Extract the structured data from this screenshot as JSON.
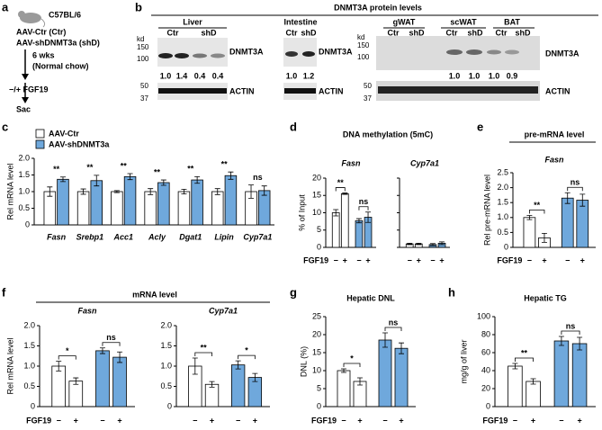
{
  "schematic": {
    "label": "a",
    "strain": "C57BL/6",
    "groups": [
      "AAV-Ctr (Ctr)",
      "AAV-shDNMT3a (shD)"
    ],
    "duration": "6 wks",
    "diet": "(Normal chow)",
    "treatment": "−/+ FGF19",
    "endpoint": "Sac"
  },
  "blots": {
    "label": "b",
    "title": "DNMT3A protein levels",
    "unit": "kd",
    "markers_top": [
      "150",
      "100"
    ],
    "markers_bottom": [
      "50",
      "37"
    ],
    "proteins": [
      "DNMT3A",
      "ACTIN"
    ],
    "panels": [
      {
        "tissue": "Liver",
        "lanes": [
          "Ctr",
          "shD"
        ],
        "quantification": [
          "1.0",
          "1.4",
          "0.4",
          "0.4"
        ]
      },
      {
        "tissue": "Intestine",
        "lanes": [
          "Ctr",
          "shD"
        ],
        "quantification": [
          "1.0",
          "1.2"
        ]
      },
      {
        "tissue": "gWAT",
        "lanes": [
          "Ctr",
          "shD"
        ]
      },
      {
        "tissue": "scWAT",
        "lanes": [
          "Ctr",
          "shD"
        ],
        "quantification": [
          "1.0",
          "1.0"
        ]
      },
      {
        "tissue": "BAT",
        "lanes": [
          "Ctr",
          "shD"
        ],
        "quantification": [
          "1.0",
          "0.9"
        ]
      }
    ]
  },
  "chart_data": [
    {
      "type": "grouped_bar",
      "label": "c",
      "ylabel": "Rel mRNA level",
      "categories": [
        "Fasn",
        "Srebp1",
        "Acc1",
        "Acly",
        "Dgat1",
        "Lipin",
        "Cyp7a1"
      ],
      "series": [
        {
          "name": "AAV-Ctr",
          "color": "#ffffff",
          "values": [
            1,
            1,
            1,
            1,
            1,
            1,
            1
          ],
          "errors": [
            0.14,
            0.08,
            0.03,
            0.09,
            0.07,
            0.09,
            0.2
          ]
        },
        {
          "name": "AAV-shDNMT3a",
          "color": "#6fa8dc",
          "values": [
            1.37,
            1.33,
            1.45,
            1.27,
            1.35,
            1.48,
            1.03
          ],
          "errors": [
            0.07,
            0.16,
            0.09,
            0.08,
            0.1,
            0.11,
            0.14
          ]
        }
      ],
      "significance": [
        "**",
        "**",
        "**",
        "**",
        "**",
        "**",
        "ns"
      ],
      "ylim": [
        0,
        2
      ],
      "yticks": [
        0,
        0.5,
        {
          "value": 1,
          "label": "1.0"
        },
        1.5,
        {
          "value": 2,
          "label": "2.0"
        }
      ]
    },
    {
      "type": "bar",
      "label": "d",
      "title": "DNA methylation (5mC)",
      "ylabel": "% of Input",
      "xlabel": "FGF19",
      "categories": [
        "−",
        "+",
        "−",
        "+"
      ],
      "colors": [
        "#ffffff",
        "#ffffff",
        "#6fa8dc",
        "#6fa8dc"
      ],
      "ylim": [
        0,
        20
      ],
      "yticks": [
        0,
        5,
        10,
        15,
        20
      ],
      "subplots": [
        {
          "title": "Fasn",
          "values": [
            10,
            15.5,
            7.7,
            8.7
          ],
          "errors": [
            0.9,
            0.2,
            0.6,
            1.5
          ],
          "significance": [
            "**",
            "ns"
          ]
        },
        {
          "title": "Cyp7a1",
          "values": [
            1,
            1,
            0.8,
            1.2
          ],
          "errors": [
            0.2,
            0.2,
            0.3,
            0.4
          ],
          "significance": []
        }
      ]
    },
    {
      "type": "bar",
      "label": "e",
      "title": "pre-mRNA level",
      "ylabel": "Rel pre-mRNA level",
      "xlabel": "FGF19",
      "categories": [
        "−",
        "+",
        "−",
        "+"
      ],
      "colors": [
        "#ffffff",
        "#ffffff",
        "#6fa8dc",
        "#6fa8dc"
      ],
      "ylim": [
        0,
        2.5
      ],
      "yticks": [
        0,
        0.5,
        {
          "value": 1,
          "label": "1.0"
        },
        1.5,
        {
          "value": 2,
          "label": "2.0"
        },
        2.5
      ],
      "subplots": [
        {
          "title": "Fasn",
          "values": [
            1,
            0.32,
            1.65,
            1.58
          ],
          "errors": [
            0.07,
            0.15,
            0.18,
            0.2
          ],
          "significance": [
            "**",
            "ns"
          ]
        }
      ]
    },
    {
      "type": "bar",
      "label": "f",
      "title": "mRNA level",
      "ylabel": "Rel mRNA level",
      "xlabel": "FGF19",
      "categories": [
        "−",
        "+",
        "−",
        "+"
      ],
      "colors": [
        "#ffffff",
        "#ffffff",
        "#6fa8dc",
        "#6fa8dc"
      ],
      "ylim": [
        0,
        2
      ],
      "yticks": [
        0,
        0.5,
        {
          "value": 1,
          "label": "1.0"
        },
        1.5,
        {
          "value": 2,
          "label": "2.0"
        }
      ],
      "subplots": [
        {
          "title": "Fasn",
          "values": [
            1,
            0.63,
            1.38,
            1.22
          ],
          "errors": [
            0.12,
            0.08,
            0.07,
            0.13
          ],
          "significance": [
            "*",
            "ns"
          ]
        },
        {
          "title": "Cyp7a1",
          "values": [
            1,
            0.55,
            1.03,
            0.72
          ],
          "errors": [
            0.2,
            0.07,
            0.1,
            0.1
          ],
          "significance": [
            "**",
            "*"
          ]
        }
      ]
    },
    {
      "type": "bar",
      "label": "g",
      "title": "Hepatic DNL",
      "ylabel": "DNL (%)",
      "xlabel": "FGF19",
      "categories": [
        "−",
        "+",
        "−",
        "+"
      ],
      "colors": [
        "#ffffff",
        "#ffffff",
        "#6fa8dc",
        "#6fa8dc"
      ],
      "ylim": [
        0,
        25
      ],
      "yticks": [
        0,
        5,
        10,
        15,
        20,
        25
      ],
      "subplots": [
        {
          "values": [
            10,
            7,
            18.5,
            16.2
          ],
          "errors": [
            0.5,
            1,
            2,
            1.5
          ],
          "significance": [
            "*",
            "ns"
          ]
        }
      ]
    },
    {
      "type": "bar",
      "label": "h",
      "title": "Hepatic TG",
      "ylabel": "mg/g of liver",
      "xlabel": "FGF19",
      "categories": [
        "−",
        "+",
        "−",
        "+"
      ],
      "colors": [
        "#ffffff",
        "#ffffff",
        "#6fa8dc",
        "#6fa8dc"
      ],
      "ylim": [
        0,
        100
      ],
      "yticks": [
        0,
        20,
        40,
        60,
        80,
        100
      ],
      "subplots": [
        {
          "values": [
            45,
            28,
            73,
            70
          ],
          "errors": [
            3,
            3,
            5,
            7
          ],
          "significance": [
            "**",
            "ns"
          ]
        }
      ]
    }
  ]
}
